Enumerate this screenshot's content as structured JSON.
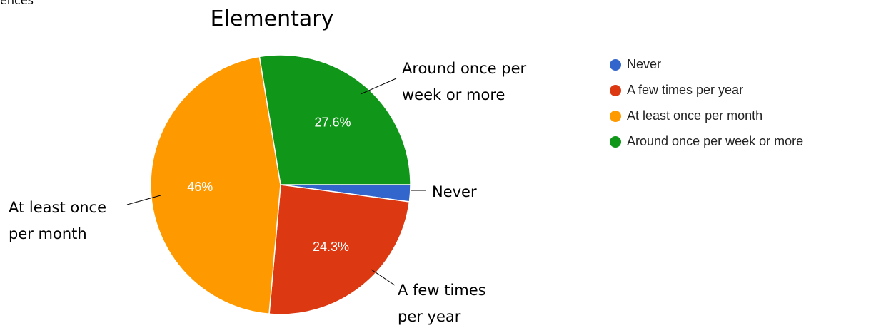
{
  "cropped_text": "ences",
  "chart_data": {
    "type": "pie",
    "title": "Elementary",
    "categories": [
      "Never",
      "A few times per year",
      "At least once per month",
      "Around once per week or more"
    ],
    "values": [
      2.1,
      24.3,
      46,
      27.6
    ],
    "value_labels": [
      null,
      "24.3%",
      "46%",
      "27.6%"
    ],
    "colors": [
      "#3366cc",
      "#dc3912",
      "#ff9900",
      "#109618"
    ],
    "callout_labels": [
      [
        "Never"
      ],
      [
        "A few times",
        "per year"
      ],
      [
        "At least once",
        "per month"
      ],
      [
        "Around once per",
        "week or more"
      ]
    ],
    "legend": "right"
  }
}
